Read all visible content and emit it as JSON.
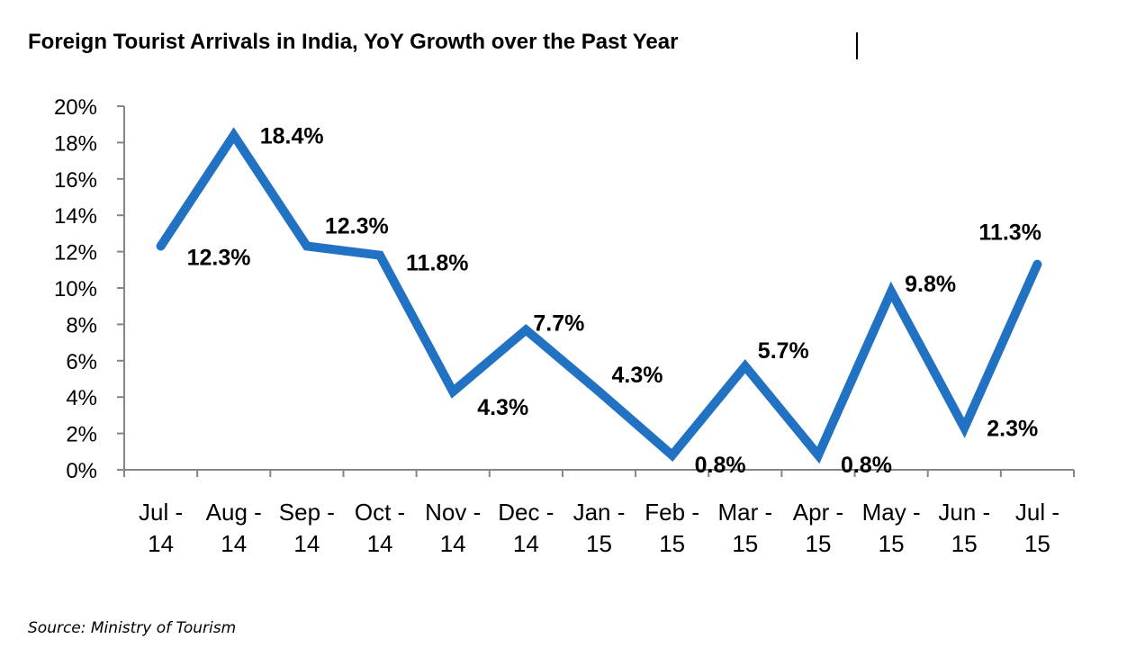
{
  "chart_data": {
    "type": "line",
    "title": "Foreign Tourist Arrivals in India, YoY Growth over the Past Year",
    "xlabel": "",
    "ylabel": "",
    "categories": [
      [
        "Jul -",
        "14"
      ],
      [
        "Aug -",
        "14"
      ],
      [
        "Sep -",
        "14"
      ],
      [
        "Oct -",
        "14"
      ],
      [
        "Nov -",
        "14"
      ],
      [
        "Dec -",
        "14"
      ],
      [
        "Jan -",
        "15"
      ],
      [
        "Feb -",
        "15"
      ],
      [
        "Mar -",
        "15"
      ],
      [
        "Apr -",
        "15"
      ],
      [
        "May -",
        "15"
      ],
      [
        "Jun -",
        "15"
      ],
      [
        "Jul -",
        "15"
      ]
    ],
    "series": [
      {
        "name": "YoY Growth",
        "color": "#2272c3",
        "values": [
          12.3,
          18.4,
          12.3,
          11.8,
          4.3,
          7.7,
          4.3,
          0.8,
          5.7,
          0.8,
          9.8,
          2.3,
          11.3
        ],
        "data_labels": [
          "12.3%",
          "18.4%",
          "12.3%",
          "11.8%",
          "4.3%",
          "7.7%",
          "4.3%",
          "0.8%",
          "5.7%",
          "0.8%",
          "9.8%",
          "2.3%",
          "11.3%"
        ]
      }
    ],
    "ylim": [
      0,
      20
    ],
    "yticks": [
      0,
      2,
      4,
      6,
      8,
      10,
      12,
      14,
      16,
      18,
      20
    ],
    "ytick_labels": [
      "0%",
      "2%",
      "4%",
      "6%",
      "8%",
      "10%",
      "12%",
      "14%",
      "16%",
      "18%",
      "20%"
    ],
    "grid": false,
    "legend": "none",
    "source": "Source: Ministry of Tourism"
  }
}
